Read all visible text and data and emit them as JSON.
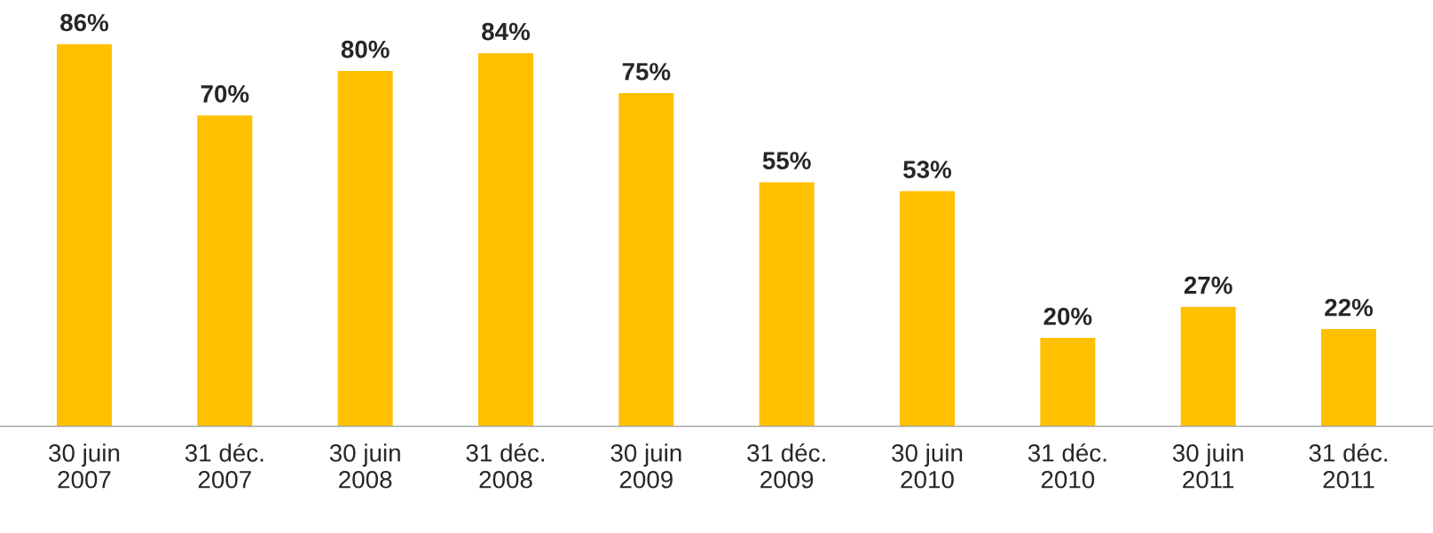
{
  "chart_data": {
    "type": "bar",
    "categories": [
      "30 juin\n2007",
      "31 déc.\n2007",
      "30 juin\n2008",
      "31 déc.\n2008",
      "30 juin\n2009",
      "31 déc.\n2009",
      "30 juin\n2010",
      "31 déc.\n2010",
      "30 juin\n2011",
      "31 déc.\n2011"
    ],
    "values": [
      86,
      70,
      80,
      84,
      75,
      55,
      53,
      20,
      27,
      22
    ],
    "value_labels": [
      "86%",
      "70%",
      "80%",
      "84%",
      "75%",
      "55%",
      "53%",
      "20%",
      "27%",
      "22%"
    ],
    "color": "#ffc000",
    "grid": false,
    "legend": false,
    "tick_labels": "x"
  }
}
